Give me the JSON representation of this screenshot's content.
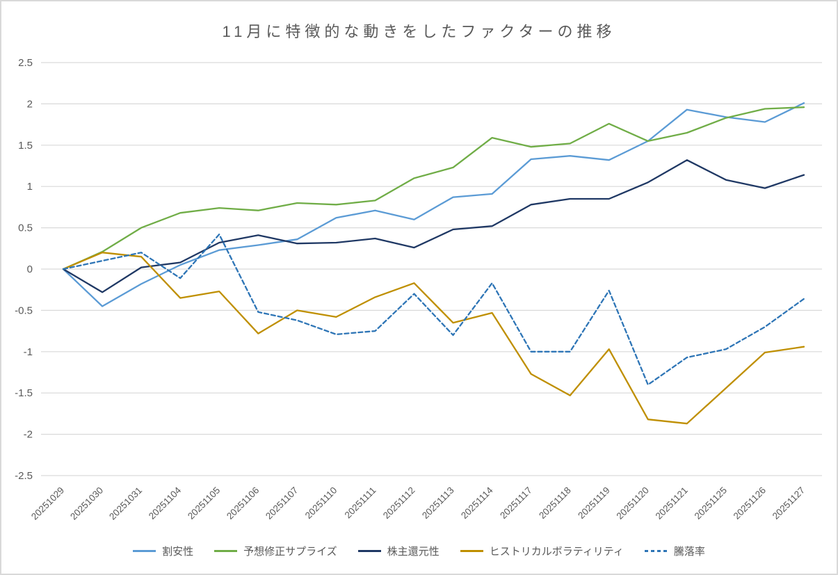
{
  "chart_data": {
    "type": "line",
    "title": "11月に特徴的な動きをしたファクターの推移",
    "xlabel": "",
    "ylabel": "",
    "ylim": [
      -2.5,
      2.5
    ],
    "ytick_step": 0.5,
    "yticks": [
      "2.5",
      "2",
      "1.5",
      "1",
      "0.5",
      "0",
      "-0.5",
      "-1",
      "-1.5",
      "-2",
      "-2.5"
    ],
    "grid": true,
    "legend_position": "bottom",
    "text_color": "#595959",
    "grid_color": "#D9D9D9",
    "border_color": "#D9D9D9",
    "categories": [
      "20251029",
      "20251030",
      "20251031",
      "20251104",
      "20251105",
      "20251106",
      "20251107",
      "20251110",
      "20251111",
      "20251112",
      "20251113",
      "20251114",
      "20251117",
      "20251118",
      "20251119",
      "20251120",
      "20251121",
      "20251125",
      "20251126",
      "20251127"
    ],
    "series": [
      {
        "name": "割安性",
        "color": "#5B9BD5",
        "dash": false,
        "values": [
          0,
          -0.45,
          -0.18,
          0.05,
          0.23,
          0.29,
          0.36,
          0.62,
          0.71,
          0.6,
          0.87,
          0.91,
          1.33,
          1.37,
          1.32,
          1.55,
          1.93,
          1.84,
          1.78,
          2.01
        ]
      },
      {
        "name": "予想修正サプライズ",
        "color": "#70AD47",
        "dash": false,
        "values": [
          0,
          0.21,
          0.5,
          0.68,
          0.74,
          0.71,
          0.8,
          0.78,
          0.83,
          1.1,
          1.23,
          1.59,
          1.48,
          1.52,
          1.76,
          1.55,
          1.65,
          1.83,
          1.94,
          1.96
        ]
      },
      {
        "name": "株主還元性",
        "color": "#1F3864",
        "dash": false,
        "values": [
          0,
          -0.28,
          0.02,
          0.08,
          0.32,
          0.41,
          0.31,
          0.32,
          0.37,
          0.26,
          0.48,
          0.52,
          0.78,
          0.85,
          0.85,
          1.05,
          1.32,
          1.08,
          0.98,
          1.14
        ]
      },
      {
        "name": "ヒストリカルボラティリティ",
        "color": "#BF8F00",
        "dash": false,
        "values": [
          0,
          0.2,
          0.15,
          -0.35,
          -0.27,
          -0.78,
          -0.5,
          -0.58,
          -0.34,
          -0.17,
          -0.65,
          -0.53,
          -1.27,
          -1.53,
          -0.97,
          -1.82,
          -1.87,
          -1.44,
          -1.01,
          -0.94
        ]
      },
      {
        "name": "騰落率",
        "color": "#2E75B6",
        "dash": true,
        "values": [
          0,
          0.1,
          0.2,
          -0.11,
          0.42,
          -0.52,
          -0.62,
          -0.79,
          -0.75,
          -0.3,
          -0.8,
          -0.17,
          -1.0,
          -1.0,
          -0.26,
          -1.4,
          -1.07,
          -0.97,
          -0.7,
          -0.36
        ]
      }
    ]
  }
}
